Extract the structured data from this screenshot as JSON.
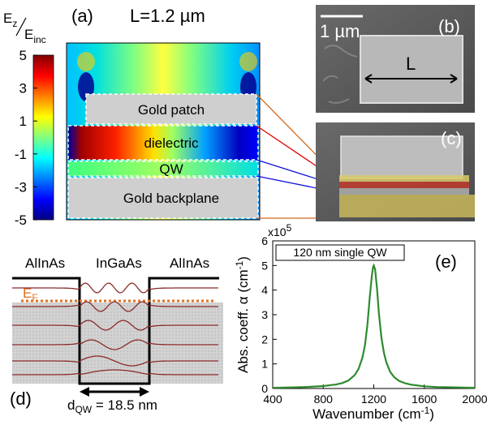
{
  "panel_a": {
    "tag": "(a)",
    "length_label": "L=1.2 µm",
    "colorbar": {
      "label_num": "E",
      "label_num_sub": "z",
      "label_den": "E",
      "label_den_sub": "inc",
      "ticks": [
        "5",
        "3",
        "1",
        "-1",
        "-3",
        "-5"
      ],
      "colors": [
        "#800000",
        "#ff0000",
        "#ff8000",
        "#ffff00",
        "#80ff80",
        "#00ffff",
        "#0080ff",
        "#0000ff",
        "#000080"
      ]
    },
    "layers": {
      "patch": "Gold patch",
      "dielectric": "dielectric",
      "qw": "QW",
      "backplane": "Gold backplane"
    }
  },
  "panel_b": {
    "tag": "(b)",
    "scale": "1 µm",
    "dimension": "L"
  },
  "panel_c": {
    "tag": "(c)"
  },
  "panel_d": {
    "tag": "(d)",
    "left_material": "AlInAs",
    "center_material": "InGaAs",
    "right_material": "AlInAs",
    "fermi_label": "E",
    "fermi_sub": "F",
    "width_label": "d",
    "width_sub": "QW",
    "width_value": " = 18.5 nm"
  },
  "panel_e": {
    "tag": "(e)",
    "legend": "120 nm single QW",
    "multiplier": "x10",
    "multiplier_exp": "5",
    "chart_data": {
      "type": "line",
      "xlabel": "Wavenumber (cm",
      "xlabel_sup": "-1",
      "xlabel_end": ")",
      "ylabel": "Abs. coeff. α (cm",
      "ylabel_sup": "-1",
      "ylabel_end": ")",
      "xlim": [
        400,
        2000
      ],
      "ylim": [
        0,
        6
      ],
      "xticks": [
        "400",
        "800",
        "1200",
        "1600",
        "2000"
      ],
      "yticks": [
        "0",
        "1",
        "2",
        "3",
        "4",
        "5",
        "6"
      ],
      "series": [
        {
          "color": "#2e8b2e",
          "x": [
            400,
            500,
            600,
            700,
            800,
            900,
            950,
            1000,
            1050,
            1080,
            1110,
            1130,
            1150,
            1170,
            1185,
            1195,
            1200,
            1210,
            1225,
            1240,
            1260,
            1280,
            1300,
            1330,
            1360,
            1400,
            1450,
            1500,
            1600,
            1700,
            1800,
            1900,
            2000
          ],
          "y": [
            0.03,
            0.04,
            0.05,
            0.07,
            0.1,
            0.16,
            0.22,
            0.33,
            0.55,
            0.8,
            1.25,
            1.75,
            2.6,
            3.8,
            4.6,
            4.95,
            5.0,
            4.85,
            4.1,
            3.1,
            2.1,
            1.45,
            1.05,
            0.68,
            0.47,
            0.31,
            0.21,
            0.15,
            0.09,
            0.06,
            0.05,
            0.04,
            0.03
          ]
        }
      ]
    }
  }
}
